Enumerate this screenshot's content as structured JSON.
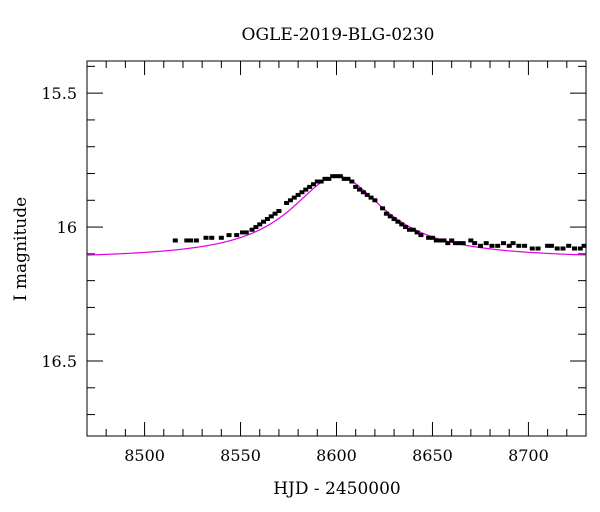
{
  "chart_data": {
    "type": "scatter",
    "title": "OGLE-2019-BLG-0230",
    "xlabel": "HJD - 2450000",
    "ylabel": "I magnitude",
    "xlim": [
      8470,
      8730
    ],
    "ylim": [
      16.78,
      15.38
    ],
    "y_inverted": true,
    "xticks": [
      8500,
      8550,
      8600,
      8650,
      8700
    ],
    "xtick_labels": [
      "8500",
      "8550",
      "8600",
      "8650",
      "8700"
    ],
    "yticks": [
      15.5,
      16,
      16.5
    ],
    "ytick_labels": [
      "15.5",
      "16",
      "16.5"
    ],
    "grid": false,
    "model_color": "#e000e0",
    "point_color": "#000000",
    "model": {
      "name": "",
      "t0": 8600.5,
      "peak_mag": 15.81,
      "baseline_mag": 16.12,
      "half_width": 30
    },
    "series": [
      {
        "name": "",
        "points": [
          [
            8516,
            16.05
          ],
          [
            8522,
            16.05
          ],
          [
            8524,
            16.05
          ],
          [
            8527,
            16.05
          ],
          [
            8532,
            16.04
          ],
          [
            8535,
            16.04
          ],
          [
            8540,
            16.04
          ],
          [
            8544,
            16.03
          ],
          [
            8548,
            16.03
          ],
          [
            8551,
            16.02
          ],
          [
            8553,
            16.02
          ],
          [
            8556,
            16.01
          ],
          [
            8558,
            16.0
          ],
          [
            8560,
            15.99
          ],
          [
            8562,
            15.98
          ],
          [
            8564,
            15.97
          ],
          [
            8566,
            15.96
          ],
          [
            8568,
            15.95
          ],
          [
            8570,
            15.94
          ],
          [
            8574,
            15.91
          ],
          [
            8576,
            15.9
          ],
          [
            8578,
            15.89
          ],
          [
            8580,
            15.88
          ],
          [
            8582,
            15.87
          ],
          [
            8584,
            15.86
          ],
          [
            8586,
            15.85
          ],
          [
            8588,
            15.84
          ],
          [
            8590,
            15.83
          ],
          [
            8592,
            15.83
          ],
          [
            8594,
            15.82
          ],
          [
            8596,
            15.82
          ],
          [
            8598,
            15.81
          ],
          [
            8600,
            15.81
          ],
          [
            8602,
            15.81
          ],
          [
            8604,
            15.82
          ],
          [
            8606,
            15.82
          ],
          [
            8608,
            15.83
          ],
          [
            8610,
            15.85
          ],
          [
            8612,
            15.86
          ],
          [
            8614,
            15.87
          ],
          [
            8616,
            15.88
          ],
          [
            8618,
            15.89
          ],
          [
            8620,
            15.9
          ],
          [
            8624,
            15.93
          ],
          [
            8626,
            15.95
          ],
          [
            8628,
            15.96
          ],
          [
            8630,
            15.97
          ],
          [
            8632,
            15.98
          ],
          [
            8634,
            15.99
          ],
          [
            8636,
            16.0
          ],
          [
            8638,
            16.01
          ],
          [
            8640,
            16.01
          ],
          [
            8642,
            16.02
          ],
          [
            8644,
            16.03
          ],
          [
            8648,
            16.04
          ],
          [
            8650,
            16.04
          ],
          [
            8652,
            16.05
          ],
          [
            8654,
            16.05
          ],
          [
            8656,
            16.05
          ],
          [
            8658,
            16.06
          ],
          [
            8660,
            16.05
          ],
          [
            8662,
            16.06
          ],
          [
            8664,
            16.06
          ],
          [
            8666,
            16.06
          ],
          [
            8670,
            16.05
          ],
          [
            8672,
            16.06
          ],
          [
            8675,
            16.07
          ],
          [
            8678,
            16.06
          ],
          [
            8681,
            16.07
          ],
          [
            8684,
            16.07
          ],
          [
            8687,
            16.06
          ],
          [
            8690,
            16.07
          ],
          [
            8692,
            16.06
          ],
          [
            8695,
            16.07
          ],
          [
            8698,
            16.07
          ],
          [
            8702,
            16.08
          ],
          [
            8705,
            16.08
          ],
          [
            8710,
            16.07
          ],
          [
            8712,
            16.07
          ],
          [
            8715,
            16.08
          ],
          [
            8718,
            16.08
          ],
          [
            8721,
            16.07
          ],
          [
            8724,
            16.08
          ],
          [
            8727,
            16.08
          ],
          [
            8729,
            16.07
          ]
        ]
      }
    ]
  }
}
